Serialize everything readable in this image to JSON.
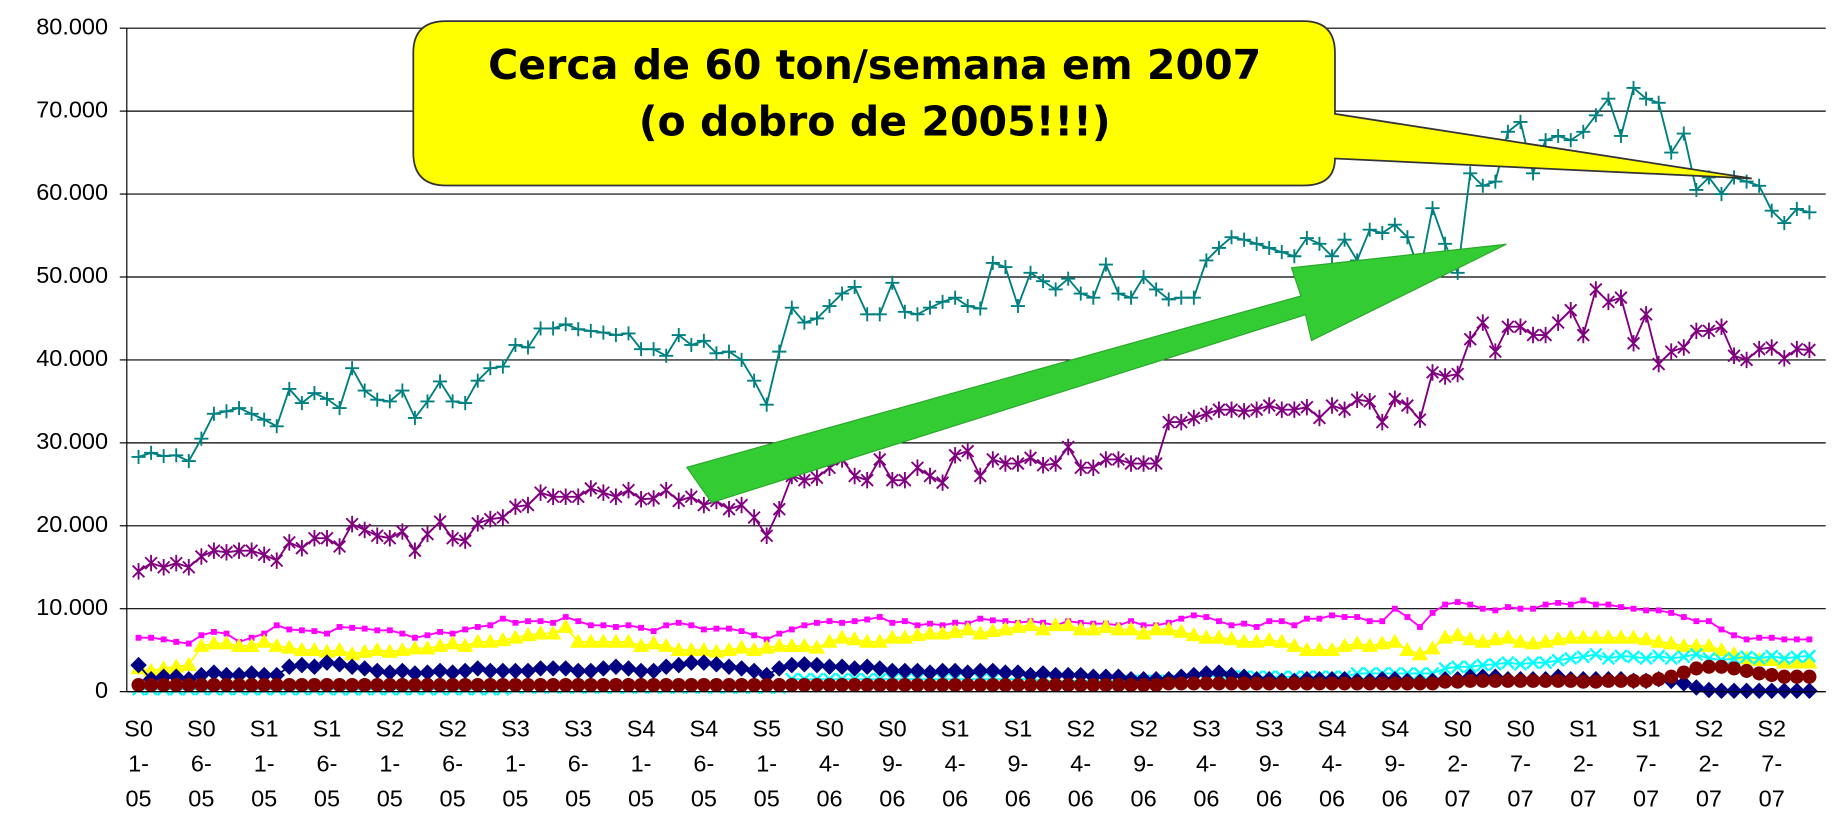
{
  "chart_data": {
    "type": "line",
    "annotations": [
      "Cerca de 60 ton/semana em 2007",
      "(o dobro de 2005!!!)"
    ],
    "categories": [
      "S01-05",
      null,
      null,
      null,
      null,
      "S06-05",
      null,
      null,
      null,
      null,
      "S11-05",
      null,
      null,
      null,
      null,
      "S16-05",
      null,
      null,
      null,
      null,
      "S21-05",
      null,
      null,
      null,
      null,
      "S26-05",
      null,
      null,
      null,
      null,
      "S31-05",
      null,
      null,
      null,
      null,
      "S36-05",
      null,
      null,
      null,
      null,
      "S41-05",
      null,
      null,
      null,
      null,
      "S46-05",
      null,
      null,
      null,
      null,
      "S51-05",
      null,
      null,
      null,
      null,
      "S04-06",
      null,
      null,
      null,
      null,
      "S09-06",
      null,
      null,
      null,
      null,
      "S14-06",
      null,
      null,
      null,
      null,
      "S19-06",
      null,
      null,
      null,
      null,
      "S24-06",
      null,
      null,
      null,
      null,
      "S29-06",
      null,
      null,
      null,
      null,
      "S34-06",
      null,
      null,
      null,
      null,
      "S39-06",
      null,
      null,
      null,
      null,
      "S44-06",
      null,
      null,
      null,
      null,
      "S49-06",
      null,
      null,
      null,
      null,
      "S02-07",
      null,
      null,
      null,
      null,
      "S07-07",
      null,
      null,
      null,
      null,
      "S12-07",
      null,
      null,
      null,
      null,
      "S17-07",
      null,
      null,
      null,
      null,
      "S22-07",
      null,
      null,
      null,
      null,
      "S27-07",
      null,
      null,
      null
    ],
    "ylim": [
      0,
      80000
    ],
    "yticks": [
      0,
      {
        "value": 10000,
        "label": "10.000"
      },
      {
        "value": 20000,
        "label": "20.000"
      },
      {
        "value": 30000,
        "label": "30.000"
      },
      {
        "value": 40000,
        "label": "40.000"
      },
      {
        "value": 50000,
        "label": "50.000"
      },
      {
        "value": 60000,
        "label": "60.000"
      },
      {
        "value": 70000,
        "label": "70.000"
      },
      {
        "value": 80000,
        "label": "80.000"
      }
    ],
    "grid": true,
    "series": [
      {
        "color": "#008080",
        "marker": "plus",
        "values": [
          28300,
          28800,
          28400,
          28500,
          27800,
          30500,
          33500,
          33800,
          34200,
          33500,
          32800,
          32000,
          36500,
          34800,
          36000,
          35300,
          34200,
          39000,
          36300,
          35200,
          35000,
          36300,
          33000,
          35000,
          37400,
          35000,
          34800,
          37500,
          39000,
          39200,
          41800,
          41500,
          43800,
          43800,
          44300,
          43700,
          43500,
          43300,
          43000,
          43200,
          41300,
          41300,
          40500,
          43000,
          41800,
          42300,
          40800,
          41000,
          40000,
          37500,
          34600,
          41000,
          46300,
          44500,
          45000,
          46500,
          48000,
          48800,
          45500,
          45500,
          49300,
          45800,
          45500,
          46300,
          47000,
          47500,
          46500,
          46200,
          51700,
          51200,
          46500,
          50500,
          49500,
          48500,
          49800,
          48000,
          47500,
          51500,
          48000,
          47500,
          50000,
          48500,
          47300,
          47500,
          47500,
          52000,
          53500,
          54800,
          54500,
          54000,
          53500,
          53000,
          52500,
          54700,
          54000,
          52500,
          54500,
          52000,
          55700,
          55300,
          56300,
          54800,
          50500,
          58300,
          54000,
          50500,
          62500,
          61000,
          61500,
          67500,
          68700,
          62500,
          66500,
          67000,
          66500,
          67500,
          69500,
          71500,
          67000,
          72800,
          71500,
          71000,
          65000,
          67300,
          60500,
          62000,
          60000,
          62000,
          61500,
          61000,
          58000,
          56500,
          58200,
          57800
        ]
      },
      {
        "color": "#800080",
        "marker": "asterisk",
        "values": [
          14500,
          15500,
          15000,
          15500,
          15000,
          16300,
          17000,
          16800,
          17000,
          17000,
          16500,
          15800,
          18000,
          17300,
          18500,
          18500,
          17500,
          20200,
          19500,
          18800,
          18500,
          19300,
          17000,
          19000,
          20500,
          18500,
          18200,
          20300,
          20800,
          21000,
          22300,
          22500,
          24000,
          23500,
          23500,
          23500,
          24500,
          24000,
          23500,
          24300,
          23200,
          23300,
          24300,
          23000,
          23500,
          22500,
          23000,
          22000,
          22500,
          21000,
          18800,
          22000,
          26000,
          25500,
          25800,
          27000,
          28000,
          26000,
          25500,
          28000,
          25500,
          25500,
          27000,
          26000,
          25200,
          28500,
          29000,
          26000,
          28000,
          27500,
          27500,
          28200,
          27300,
          27500,
          29500,
          27000,
          27000,
          28000,
          28000,
          27500,
          27500,
          27500,
          32500,
          32500,
          33000,
          33500,
          34000,
          34000,
          33800,
          34000,
          34500,
          34000,
          34000,
          34300,
          33000,
          34500,
          34000,
          35200,
          35000,
          32500,
          35300,
          34500,
          32800,
          38500,
          38000,
          38300,
          42500,
          44500,
          41000,
          44000,
          44000,
          43000,
          43000,
          44500,
          46000,
          43000,
          48500,
          47000,
          47500,
          42000,
          45500,
          39500,
          41000,
          41500,
          43500,
          43500,
          44000,
          40500,
          40000,
          41300,
          41500,
          40200,
          41300,
          41200
        ]
      },
      {
        "color": "#ff00ff",
        "marker": "square",
        "values": [
          6500,
          6500,
          6300,
          6000,
          5800,
          6800,
          7200,
          7000,
          6000,
          6500,
          7000,
          8000,
          7500,
          7400,
          7300,
          7000,
          7800,
          7700,
          7600,
          7400,
          7400,
          7000,
          6500,
          6800,
          7200,
          7000,
          7500,
          7800,
          8000,
          8800,
          8300,
          8500,
          8500,
          8300,
          9000,
          8500,
          8000,
          8000,
          7800,
          8000,
          7700,
          7300,
          8000,
          8300,
          8000,
          7500,
          7600,
          7600,
          7300,
          6800,
          6300,
          7000,
          7500,
          8000,
          8300,
          8500,
          8300,
          8500,
          8700,
          9000,
          8300,
          8500,
          8000,
          8200,
          8000,
          8300,
          8200,
          8800,
          8600,
          8500,
          8300,
          8500,
          8300,
          8000,
          8500,
          8300,
          8200,
          8200,
          8000,
          8500,
          8000,
          8000,
          8300,
          8800,
          9200,
          9000,
          8500,
          8000,
          8200,
          7800,
          8500,
          8500,
          8000,
          8800,
          8800,
          9200,
          9000,
          9000,
          8500,
          8500,
          10000,
          9000,
          7800,
          9500,
          10500,
          10800,
          10500,
          10000,
          9800,
          10200,
          10000,
          10000,
          10500,
          10700,
          10500,
          11000,
          10500,
          10500,
          10200,
          10000,
          9800,
          9800,
          9500,
          9000,
          8500,
          8500,
          7500,
          6800,
          6300,
          6500,
          6500,
          6300,
          6300,
          6300
        ]
      },
      {
        "color": "#ffff00",
        "marker": "triangle",
        "values": [
          2800,
          2500,
          2800,
          3000,
          3200,
          5500,
          5800,
          5800,
          5500,
          5500,
          6000,
          5500,
          5300,
          5000,
          5000,
          4800,
          5000,
          4500,
          4800,
          5000,
          4800,
          5000,
          5200,
          5200,
          5500,
          5800,
          5500,
          6000,
          6000,
          6200,
          6500,
          6800,
          7000,
          7000,
          7800,
          6000,
          6000,
          6000,
          6000,
          6000,
          5500,
          5800,
          5500,
          5000,
          5000,
          5000,
          4800,
          5000,
          5300,
          5000,
          5300,
          5500,
          5500,
          5500,
          5300,
          6000,
          6500,
          6300,
          6000,
          6000,
          6500,
          6500,
          6800,
          7000,
          7000,
          7200,
          7500,
          7000,
          7300,
          7500,
          7800,
          8000,
          7500,
          8000,
          8000,
          7500,
          7500,
          7800,
          7500,
          7500,
          7000,
          7500,
          7500,
          7200,
          6800,
          6500,
          6500,
          6300,
          6000,
          6000,
          6200,
          6000,
          5500,
          5000,
          5000,
          5000,
          5500,
          5800,
          5500,
          5800,
          6000,
          5000,
          4500,
          5200,
          6500,
          6800,
          6300,
          6000,
          6300,
          6500,
          6000,
          5800,
          6000,
          6300,
          6500,
          6500,
          6500,
          6500,
          6500,
          6500,
          6300,
          6000,
          5800,
          5500,
          5500,
          5500,
          5000,
          4500,
          4000,
          3800,
          3800,
          3500,
          3500,
          3500
        ]
      },
      {
        "color": "#00ffff",
        "marker": "cross",
        "values": [
          300,
          300,
          300,
          300,
          300,
          300,
          300,
          300,
          300,
          300,
          300,
          300,
          300,
          300,
          300,
          300,
          300,
          300,
          300,
          300,
          300,
          300,
          300,
          300,
          300,
          300,
          300,
          300,
          300,
          300,
          500,
          500,
          500,
          500,
          500,
          500,
          500,
          500,
          500,
          500,
          500,
          500,
          500,
          500,
          500,
          500,
          500,
          500,
          500,
          500,
          500,
          500,
          1500,
          1500,
          1500,
          1500,
          1500,
          1500,
          1500,
          1500,
          1500,
          1500,
          1500,
          1500,
          1500,
          1500,
          1500,
          1500,
          1500,
          1500,
          1500,
          1500,
          1300,
          1300,
          1300,
          1300,
          1300,
          1300,
          1300,
          1300,
          1300,
          1300,
          1300,
          1300,
          1300,
          1300,
          1300,
          1800,
          1800,
          1800,
          1800,
          1800,
          1800,
          1800,
          1800,
          1800,
          1800,
          2200,
          2200,
          2200,
          2200,
          2200,
          2200,
          2200,
          2800,
          3000,
          3000,
          3200,
          3300,
          3500,
          3300,
          3500,
          3500,
          3800,
          4000,
          4200,
          4500,
          4000,
          4300,
          4200,
          4000,
          4300,
          4000,
          4200,
          4500,
          4000,
          3800,
          4000,
          4200,
          4000,
          4300,
          4000,
          4200,
          4300
        ]
      },
      {
        "color": "#000080",
        "marker": "diamond",
        "values": [
          3200,
          1500,
          1800,
          1800,
          1500,
          2000,
          2300,
          2000,
          2000,
          2200,
          2000,
          2000,
          3000,
          3200,
          3000,
          3500,
          3300,
          3000,
          2800,
          2500,
          2300,
          2500,
          2200,
          2300,
          2500,
          2300,
          2500,
          2800,
          2500,
          2500,
          2500,
          2500,
          2800,
          2800,
          2800,
          2500,
          2500,
          2800,
          3000,
          2800,
          2500,
          2500,
          3000,
          3200,
          3500,
          3500,
          3300,
          3000,
          2800,
          2500,
          2000,
          2800,
          3200,
          3300,
          3200,
          3000,
          3000,
          2800,
          3000,
          2800,
          2500,
          2500,
          2500,
          2300,
          2500,
          2500,
          2300,
          2500,
          2500,
          2300,
          2300,
          2000,
          2200,
          2000,
          2000,
          2000,
          1800,
          1800,
          1800,
          1500,
          1500,
          1500,
          1500,
          1800,
          2000,
          2200,
          2300,
          2000,
          1800,
          1500,
          1500,
          1300,
          1300,
          1500,
          1500,
          1500,
          1500,
          1300,
          1300,
          1500,
          1500,
          1300,
          1200,
          1300,
          1500,
          1500,
          1800,
          1800,
          1800,
          1500,
          1500,
          1500,
          1500,
          1800,
          1500,
          1500,
          1500,
          1500,
          1500,
          1300,
          1300,
          1500,
          1300,
          1000,
          500,
          200,
          100,
          100,
          100,
          100,
          100,
          100,
          100,
          100
        ]
      },
      {
        "color": "#800000",
        "marker": "circle",
        "values": [
          800,
          800,
          800,
          800,
          800,
          800,
          800,
          800,
          800,
          800,
          800,
          800,
          800,
          800,
          800,
          800,
          800,
          800,
          800,
          800,
          800,
          800,
          800,
          800,
          800,
          800,
          800,
          800,
          800,
          800,
          800,
          800,
          800,
          800,
          800,
          800,
          800,
          800,
          800,
          800,
          800,
          800,
          800,
          800,
          800,
          800,
          800,
          800,
          800,
          800,
          800,
          800,
          800,
          800,
          800,
          800,
          800,
          800,
          800,
          800,
          800,
          800,
          800,
          800,
          800,
          800,
          800,
          800,
          800,
          800,
          800,
          800,
          800,
          800,
          800,
          800,
          800,
          800,
          800,
          800,
          800,
          800,
          1000,
          1000,
          1000,
          1000,
          1000,
          1000,
          1000,
          1000,
          1000,
          1000,
          1000,
          1000,
          1000,
          1000,
          1000,
          1000,
          1000,
          1000,
          1000,
          1000,
          1000,
          1000,
          1200,
          1200,
          1300,
          1300,
          1300,
          1300,
          1300,
          1300,
          1300,
          1300,
          1300,
          1200,
          1200,
          1300,
          1300,
          1300,
          1300,
          1500,
          1800,
          2300,
          2800,
          3000,
          3000,
          2800,
          2500,
          2200,
          2000,
          1800,
          1800,
          1800
        ]
      }
    ]
  }
}
